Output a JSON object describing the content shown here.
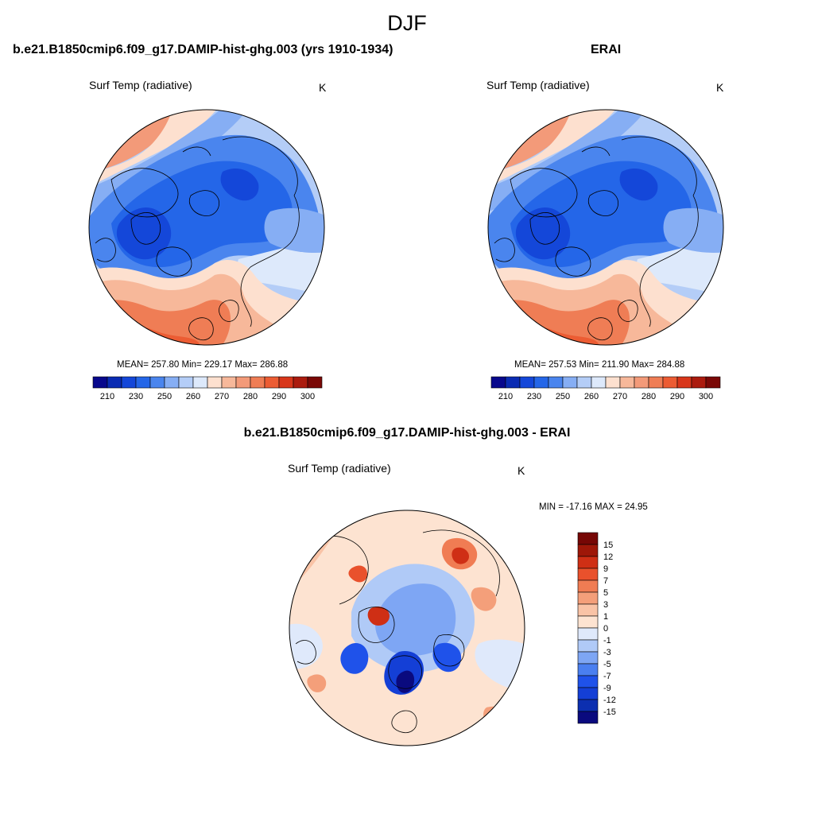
{
  "title": "DJF",
  "colors": {
    "abs_scale": [
      "#08088c",
      "#0a2bb3",
      "#1447d9",
      "#2466e8",
      "#4a85ee",
      "#86aef4",
      "#b4cdf7",
      "#dde9fb",
      "#fde0cf",
      "#f7b89a",
      "#f39a79",
      "#ef7d55",
      "#ec5c33",
      "#d8361a",
      "#ab1b0e",
      "#7a0806"
    ],
    "diff_scale": [
      "#0a0a7e",
      "#0c2fb0",
      "#143fd6",
      "#1f52ea",
      "#4a7ff0",
      "#7ea6f4",
      "#b0caf7",
      "#dfe9fb",
      "#fde3d1",
      "#f9c3a6",
      "#f49f7a",
      "#f07c53",
      "#e9512c",
      "#cf2f15",
      "#9e1708",
      "#760705"
    ],
    "land_line": "#000000"
  },
  "panels": {
    "model": {
      "title": "b.e21.B1850cmip6.f09_g17.DAMIP-hist-ghg.003 (yrs 1910-1934)",
      "variable": "Surf Temp (radiative)",
      "units": "K",
      "stats": "MEAN= 257.80  Min= 229.17  Max= 286.88",
      "colorbar_ticks": [
        "210",
        "230",
        "250",
        "260",
        "270",
        "280",
        "290",
        "300"
      ]
    },
    "obs": {
      "title": "ERAI",
      "variable": "Surf Temp (radiative)",
      "units": "K",
      "stats": "MEAN= 257.53  Min= 211.90  Max= 284.88",
      "colorbar_ticks": [
        "210",
        "230",
        "250",
        "260",
        "270",
        "280",
        "290",
        "300"
      ]
    },
    "diff": {
      "title": "b.e21.B1850cmip6.f09_g17.DAMIP-hist-ghg.003 - ERAI",
      "variable": "Surf Temp (radiative)",
      "units": "K",
      "stats": "MIN = -17.16 MAX =  24.95",
      "colorbar_ticks": [
        "15",
        "12",
        "9",
        "7",
        "5",
        "3",
        "1",
        "0",
        "-1",
        "-3",
        "-5",
        "-7",
        "-9",
        "-12",
        "-15"
      ]
    }
  }
}
